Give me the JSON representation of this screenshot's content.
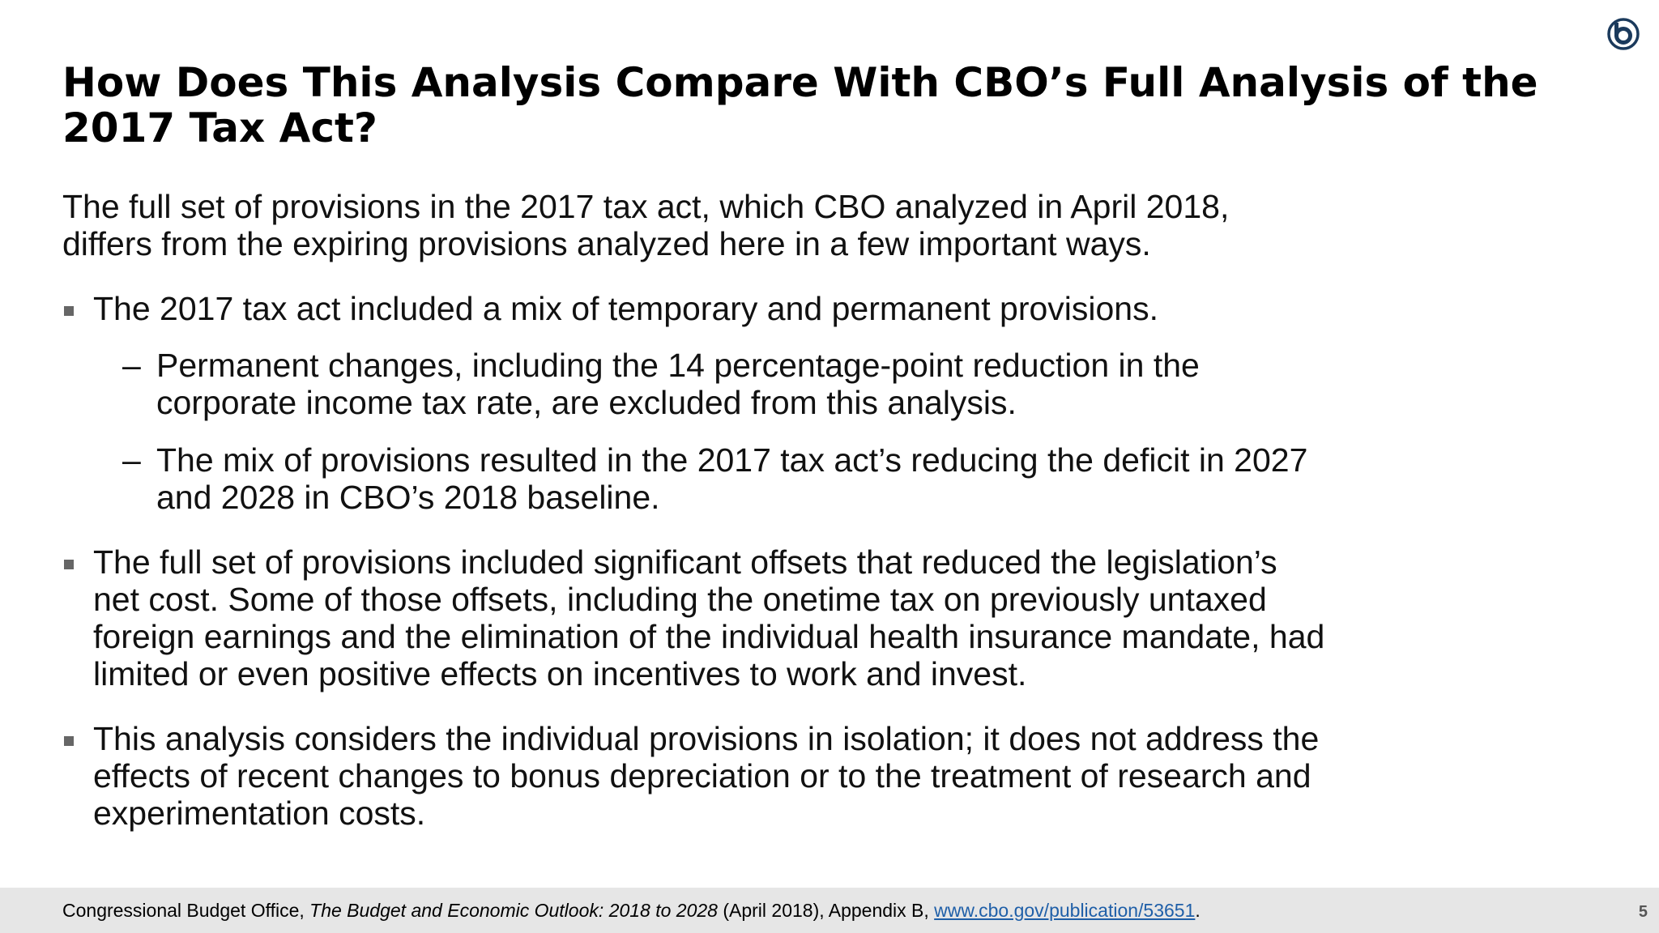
{
  "slide": {
    "title": "How Does This Analysis Compare With CBO’s Full Analysis of the 2017 Tax Act?",
    "intro": "The full set of provisions in the 2017 tax act, which CBO analyzed in April 2018, differs from the expiring provisions analyzed here in a few important ways.",
    "bullets": [
      {
        "text": "The 2017 tax act included a mix of temporary and permanent provisions.",
        "subs": [
          "Permanent changes, including the 14 percentage-point reduction in the corporate income tax rate, are excluded from this analysis.",
          "The mix of provisions resulted in the 2017 tax act’s reducing the deficit in 2027 and 2028 in CBO’s 2018 baseline."
        ]
      },
      {
        "text": "The full set of provisions included significant offsets that reduced the legislation’s net cost. Some of those offsets, including the onetime tax on previously untaxed foreign earnings and the elimination of the individual health insurance mandate, had limited or even positive effects on incentives to work and invest."
      },
      {
        "text": "This analysis considers the individual provisions in isolation; it does not address the effects of recent changes to bonus depreciation or to the treatment of research and experimentation costs."
      }
    ],
    "sub_marker": "–"
  },
  "footer": {
    "source_prefix": "Congressional Budget Office, ",
    "source_title": "The Budget and Economic Outlook: 2018 to 2028",
    "source_suffix": " (April 2018), Appendix B, ",
    "link_text": "www.cbo.gov/publication/53651",
    "end_punct": ".",
    "page_number": "5"
  },
  "logo": {
    "icon": "cbo-logo-icon",
    "color": "#1b3a5c"
  },
  "colors": {
    "link": "#1f5fa8",
    "footer_bg": "#e6e6e6",
    "bullet": "#666666"
  }
}
